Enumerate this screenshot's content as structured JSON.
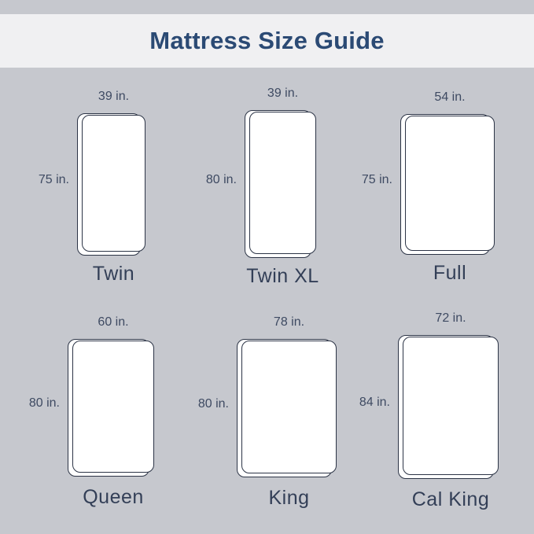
{
  "page": {
    "background_color": "#c6c8ce"
  },
  "header": {
    "title": "Mattress Size Guide",
    "band_color": "#f0f0f2",
    "text_color": "#2b4a74"
  },
  "diagram_style": {
    "outline_color": "#2c3446",
    "mattress_fill": "#ffffff",
    "dimension_label_color": "#3e4a62",
    "name_label_color": "#333f57"
  },
  "mattresses": [
    {
      "name": "Twin",
      "width_label": "39 in.",
      "length_label": "75 in.",
      "width_in": 39,
      "length_in": 75
    },
    {
      "name": "Twin XL",
      "width_label": "39 in.",
      "length_label": "80 in.",
      "width_in": 39,
      "length_in": 80
    },
    {
      "name": "Full",
      "width_label": "54 in.",
      "length_label": "75 in.",
      "width_in": 54,
      "length_in": 75
    },
    {
      "name": "Queen",
      "width_label": "60 in.",
      "length_label": "80 in.",
      "width_in": 60,
      "length_in": 80
    },
    {
      "name": "King",
      "width_label": "78 in.",
      "length_label": "80 in.",
      "width_in": 78,
      "length_in": 80
    },
    {
      "name": "Cal King",
      "width_label": "72 in.",
      "length_label": "84 in.",
      "width_in": 72,
      "length_in": 84
    }
  ]
}
